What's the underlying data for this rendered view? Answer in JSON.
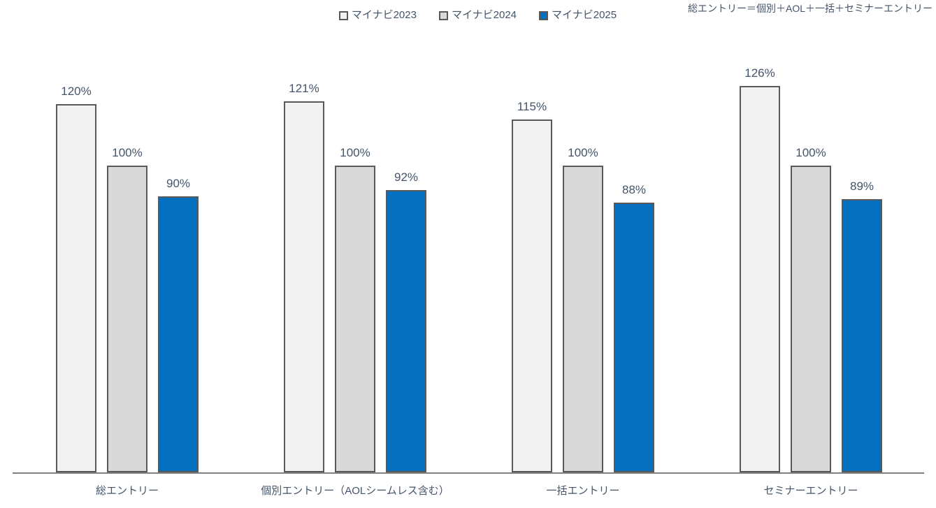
{
  "chart_data": {
    "type": "bar",
    "title": "",
    "note": "総エントリー＝個別＋AOL＋一括＋セミナーエントリー",
    "categories": [
      "総エントリー",
      "個別エントリー（AOLシームレス含む）",
      "一括エントリー",
      "セミナーエントリー"
    ],
    "series": [
      {
        "name": "マイナビ2023",
        "color": "#F2F2F2",
        "values": [
          120,
          121,
          115,
          126
        ]
      },
      {
        "name": "マイナビ2024",
        "color": "#D9D9D9",
        "values": [
          100,
          100,
          100,
          100
        ]
      },
      {
        "name": "マイナビ2025",
        "color": "#0570C0",
        "values": [
          90,
          92,
          88,
          89
        ]
      }
    ],
    "value_suffix": "%",
    "ylim": [
      0,
      140
    ],
    "grid": false,
    "legend_position": "top-center",
    "data_labels": true,
    "colors": {
      "text": "#44546A",
      "bar_border": "#595959",
      "axis_line": "#7F7F7F"
    }
  }
}
